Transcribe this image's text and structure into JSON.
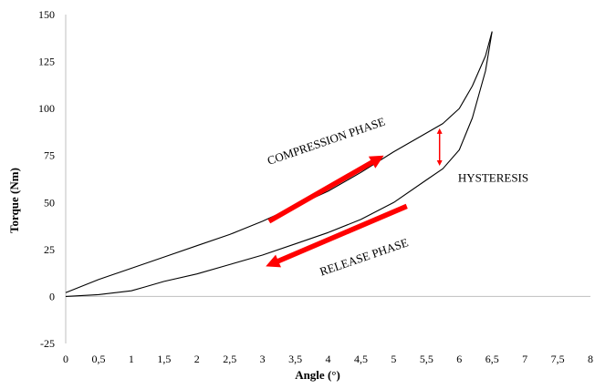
{
  "chart_data": {
    "type": "line",
    "xlabel": "Angle (°)",
    "ylabel": "Torque (Nm)",
    "xlim": [
      0,
      8
    ],
    "ylim": [
      -25,
      150
    ],
    "x_ticks": [
      "0",
      "0,5",
      "1",
      "1,5",
      "2",
      "2,5",
      "3",
      "3,5",
      "4",
      "4,5",
      "5",
      "5,5",
      "6",
      "6,5",
      "7",
      "7,5",
      "8"
    ],
    "y_ticks": [
      "-25",
      "0",
      "25",
      "50",
      "75",
      "100",
      "125",
      "150"
    ],
    "grid": false,
    "series": [
      {
        "x": [
          0,
          0.5,
          1,
          1.5,
          2,
          2.5,
          3,
          3.5,
          4,
          4.5,
          5,
          5.5,
          5.75,
          6,
          6.2,
          6.4,
          6.5
        ],
        "y": [
          2,
          9,
          15,
          21,
          27,
          33,
          40,
          48,
          56,
          66,
          77,
          87,
          92,
          100,
          112,
          128,
          141
        ]
      },
      {
        "x": [
          0,
          0.5,
          1,
          1.2,
          1.5,
          2,
          2.5,
          3,
          3.5,
          4,
          4.5,
          5,
          5.5,
          5.75,
          6,
          6.2,
          6.4,
          6.5
        ],
        "y": [
          0,
          1,
          3,
          5,
          8,
          12,
          17,
          22,
          28,
          34,
          41,
          50,
          62,
          68,
          78,
          95,
          120,
          141
        ]
      }
    ],
    "annotations": [
      {
        "text": "COMPRESSION PHASE",
        "x": 3.1,
        "y": 70,
        "angle": -19
      },
      {
        "text": "HYSTERESIS",
        "x": 5.98,
        "y": 61
      },
      {
        "text": "RELEASE PHASE",
        "x": 3.9,
        "y": 11,
        "angle": -19
      }
    ],
    "arrows": [
      {
        "kind": "compression",
        "x1": 3.1,
        "y1": 40,
        "x2": 4.85,
        "y2": 75,
        "color": "#ff0000"
      },
      {
        "kind": "release",
        "x1": 5.2,
        "y1": 48,
        "x2": 3.05,
        "y2": 16,
        "color": "#ff0000"
      },
      {
        "kind": "hysteresis",
        "x1": 5.7,
        "y1": 88,
        "x2": 5.7,
        "y2": 71,
        "color": "#ff0000"
      }
    ]
  }
}
